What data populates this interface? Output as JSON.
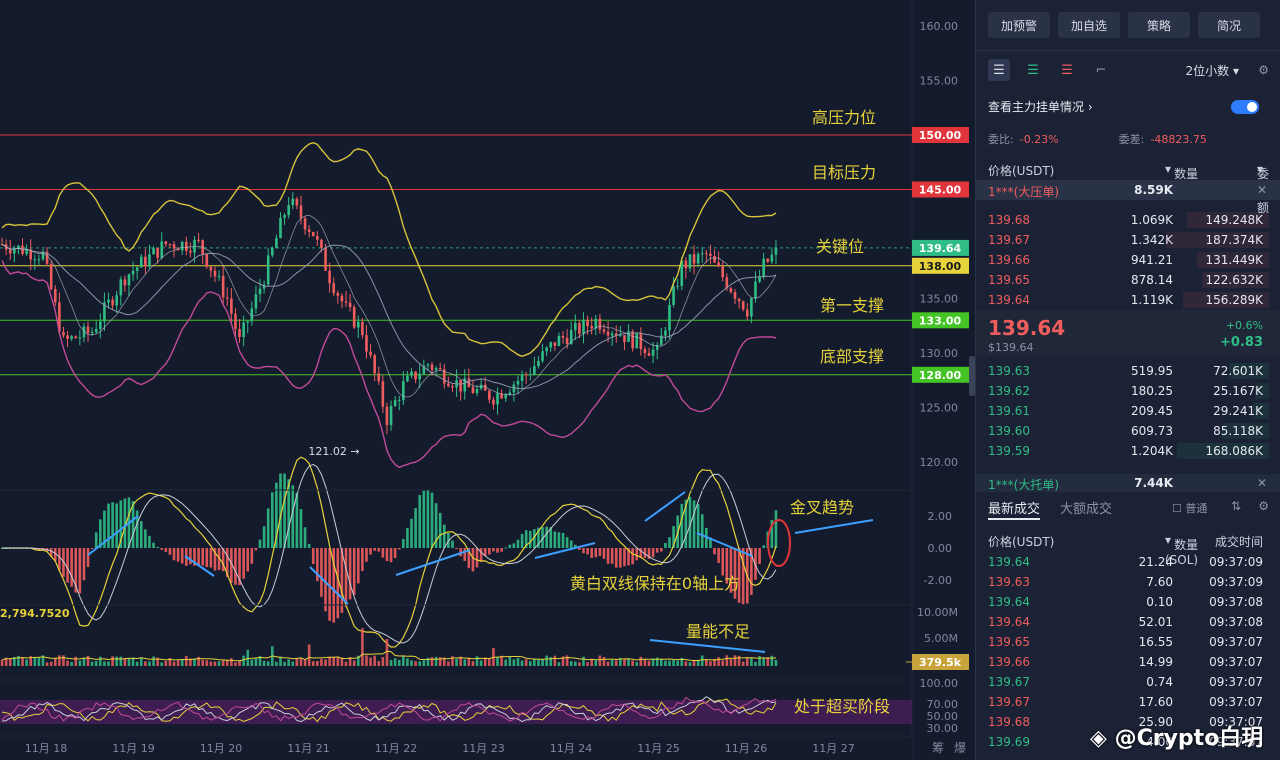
{
  "chart_annotations": {
    "levels": [
      {
        "label": "高压力位",
        "price": 150.0,
        "tag": "150.00",
        "color": "#e0353a"
      },
      {
        "label": "目标压力",
        "price": 145.0,
        "tag": "145.00",
        "color": "#e0353a"
      },
      {
        "label": "关键位",
        "price": 139.64,
        "tag": "139.64",
        "color": "#2fbd85"
      },
      {
        "label": "第一支撑",
        "price": 138.0,
        "tag": "138.00",
        "color": "#e6d23a"
      },
      {
        "label": "",
        "price": 133.0,
        "tag": "133.00",
        "color": "#44c425"
      },
      {
        "label": "底部支撑",
        "price": 128.0,
        "tag": "128.00",
        "color": "#44c425"
      }
    ],
    "price_ticks": [
      "160.00",
      "155.00",
      "150.00",
      "145.00",
      "140.00",
      "135.00",
      "130.00",
      "125.00",
      "120.00"
    ],
    "low_marker": "121.02",
    "macd_ticks": [
      "2.00",
      "0.00",
      "-2.00"
    ],
    "macd_value": "2,794.7520",
    "vol_ticks": [
      "10.00M",
      "5.00M"
    ],
    "vol_tag": "379.5k",
    "rsi_ticks": [
      "100.00",
      "70.00",
      "50.00",
      "30.00"
    ],
    "macd_note": "金叉趋势",
    "macd_note2": "黄白双线保持在0轴上方",
    "vol_note": "量能不足",
    "rsi_note": "处于超买阶段",
    "dates": [
      "11月 18",
      "11月 19",
      "11月 20",
      "11月 21",
      "11月 22",
      "11月 23",
      "11月 24",
      "11月 25",
      "11月 26",
      "11月 27"
    ],
    "corner_labels": [
      "筹",
      "爆"
    ],
    "watermark": "@Crypto白玥"
  },
  "side": {
    "buttons": [
      "加预警",
      "加自选",
      "策略",
      "简况"
    ],
    "precision": "2位小数",
    "main_orders": "查看主力挂单情况",
    "ratio_label": "委比:",
    "ratio_value": "-0.23%",
    "diff_label": "委差:",
    "diff_value": "-48823.75",
    "col_price": "价格(USDT)",
    "col_qty": "数量 (SOL)",
    "col_amount": "委托额",
    "big_ask": {
      "name": "1***(大压单)",
      "qty": "8.59K"
    },
    "asks": [
      {
        "p": "139.68",
        "q": "1.069K",
        "a": "149.248K"
      },
      {
        "p": "139.67",
        "q": "1.342K",
        "a": "187.374K"
      },
      {
        "p": "139.66",
        "q": "941.21",
        "a": "131.449K"
      },
      {
        "p": "139.65",
        "q": "878.14",
        "a": "122.632K"
      },
      {
        "p": "139.64",
        "q": "1.119K",
        "a": "156.289K"
      }
    ],
    "last_price": "139.64",
    "last_sub": "$139.64",
    "change_pct": "+0.6%",
    "change_abs": "+0.83",
    "bids": [
      {
        "p": "139.63",
        "q": "519.95",
        "a": "72.601K"
      },
      {
        "p": "139.62",
        "q": "180.25",
        "a": "25.167K"
      },
      {
        "p": "139.61",
        "q": "209.45",
        "a": "29.241K"
      },
      {
        "p": "139.60",
        "q": "609.73",
        "a": "85.118K"
      },
      {
        "p": "139.59",
        "q": "1.204K",
        "a": "168.086K"
      }
    ],
    "big_bid": {
      "name": "1***(大托单)",
      "qty": "7.44K"
    },
    "tabs": [
      "最新成交",
      "大额成交"
    ],
    "normal_label": "普通",
    "trade_cols": [
      "价格(USDT)",
      "数量(SOL)",
      "成交时间"
    ],
    "trades": [
      {
        "p": "139.64",
        "q": "21.24",
        "t": "09:37:09",
        "s": "g"
      },
      {
        "p": "139.63",
        "q": "7.60",
        "t": "09:37:09",
        "s": "r"
      },
      {
        "p": "139.64",
        "q": "0.10",
        "t": "09:37:08",
        "s": "g"
      },
      {
        "p": "139.64",
        "q": "52.01",
        "t": "09:37:08",
        "s": "r"
      },
      {
        "p": "139.65",
        "q": "16.55",
        "t": "09:37:07",
        "s": "r"
      },
      {
        "p": "139.66",
        "q": "14.99",
        "t": "09:37:07",
        "s": "r"
      },
      {
        "p": "139.67",
        "q": "0.74",
        "t": "09:37:07",
        "s": "g"
      },
      {
        "p": "139.67",
        "q": "17.60",
        "t": "09:37:07",
        "s": "r"
      },
      {
        "p": "139.68",
        "q": "25.90",
        "t": "09:37:07",
        "s": "r"
      },
      {
        "p": "139.69",
        "q": "4.00",
        "t": "09:37:07",
        "s": "g"
      }
    ]
  }
}
